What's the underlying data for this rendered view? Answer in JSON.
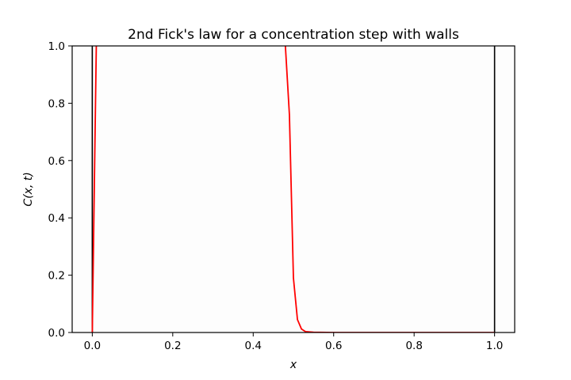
{
  "chart_data": {
    "type": "line",
    "title": "2nd Fick's law for a concentration step with walls",
    "xlabel": "x",
    "ylabel": "C(x, t)",
    "xlim": [
      -0.05,
      1.05
    ],
    "ylim": [
      0.0,
      1.0
    ],
    "grid": false,
    "legend": "none",
    "x_ticks": [
      0.0,
      0.2,
      0.4,
      0.6,
      0.8,
      1.0
    ],
    "x_tick_labels": [
      "0.0",
      "0.2",
      "0.4",
      "0.6",
      "0.8",
      "1.0"
    ],
    "y_ticks": [
      0.0,
      0.2,
      0.4,
      0.6,
      0.8,
      1.0
    ],
    "y_tick_labels": [
      "0.0",
      "0.2",
      "0.4",
      "0.6",
      "0.8",
      "1.0"
    ],
    "walls": {
      "x": [
        0.0,
        1.0
      ],
      "color": "#000000"
    },
    "series": [
      {
        "color": "#ff0000",
        "x": [
          0.0,
          0.01,
          0.02,
          0.47,
          0.48,
          0.49,
          0.5,
          0.51,
          0.52,
          0.53,
          0.55,
          0.6,
          0.7,
          0.8,
          0.9,
          1.0
        ],
        "y": [
          0.0,
          1.0,
          1.4,
          1.4,
          1.0,
          0.76,
          0.19,
          0.045,
          0.012,
          0.003,
          0.001,
          0.0,
          0.0,
          0.0,
          0.0,
          0.0
        ]
      }
    ]
  },
  "colors": {
    "plot_background": "#fdfdfd",
    "axis": "#000000"
  }
}
